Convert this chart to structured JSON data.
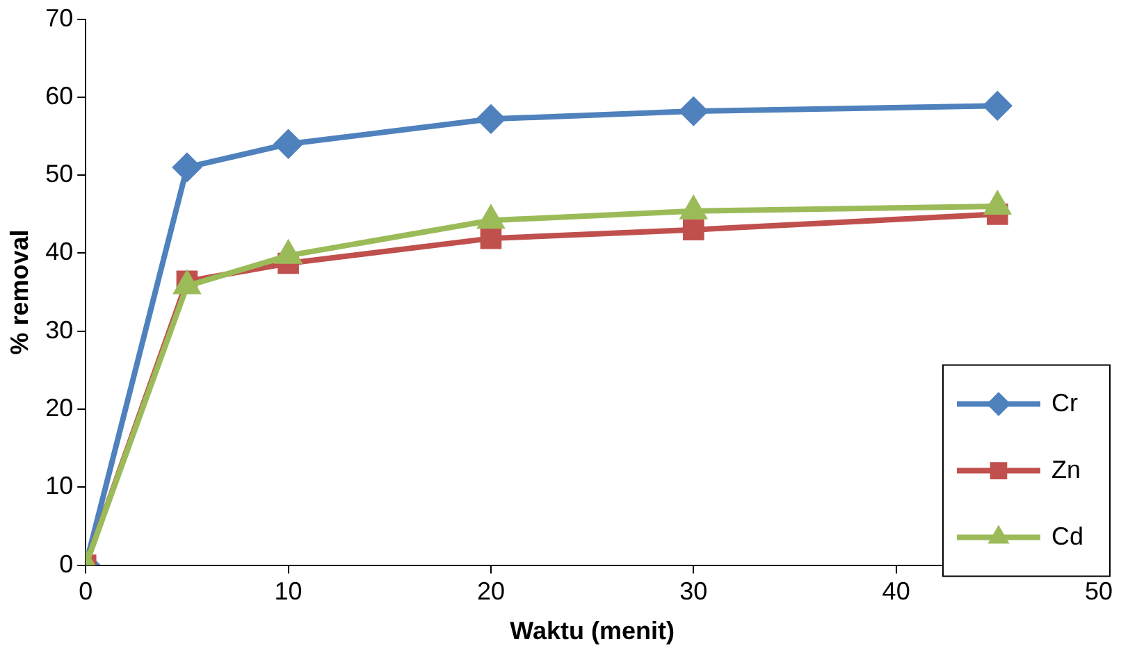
{
  "chart_data": {
    "type": "line",
    "xlabel": "Waktu (menit)",
    "ylabel": "% removal",
    "x": [
      0,
      5,
      10,
      20,
      30,
      45
    ],
    "series": [
      {
        "name": "Cr",
        "color": "#4f81bd",
        "marker": "diamond",
        "values": [
          0,
          51,
          54,
          57.2,
          58.2,
          58.9
        ]
      },
      {
        "name": "Zn",
        "color": "#c0504d",
        "marker": "square",
        "values": [
          0,
          36.4,
          38.7,
          41.9,
          43,
          45
        ]
      },
      {
        "name": "Cd",
        "color": "#9bbb59",
        "marker": "triangle",
        "values": [
          0,
          35.8,
          39.7,
          44.2,
          45.4,
          46
        ]
      }
    ],
    "xlim": [
      0,
      50
    ],
    "xticks": [
      0,
      10,
      20,
      30,
      40,
      50
    ],
    "ylim": [
      0,
      70
    ],
    "yticks": [
      0,
      10,
      20,
      30,
      40,
      50,
      60,
      70
    ],
    "grid": false,
    "legend": "bottom right",
    "line_style": "solid"
  }
}
